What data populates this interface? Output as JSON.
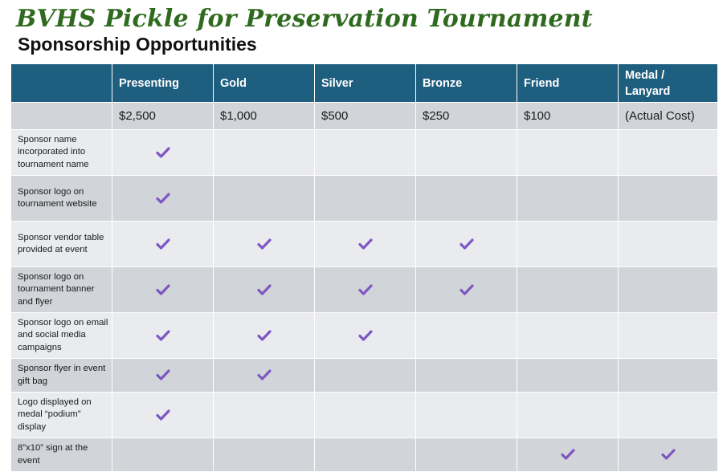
{
  "header": {
    "title": "BVHS Pickle for Preservation Tournament",
    "subtitle": "Sponsorship Opportunities"
  },
  "colors": {
    "title_green": "#2f6b1f",
    "header_blue": "#1e5e7e",
    "row_light": "#e9ebef",
    "row_dark": "#d1d4d9",
    "check_purple": "#7e57c2"
  },
  "table": {
    "tiers": [
      "Presenting",
      "Gold",
      "Silver",
      "Bronze",
      "Friend",
      "Medal / Lanyard"
    ],
    "prices": [
      "$2,500",
      "$1,000",
      "$500",
      "$250",
      "$100",
      "(Actual Cost)"
    ],
    "check_icon": "checkmark-icon",
    "rows": [
      {
        "label": "Sponsor name incorporated into tournament name",
        "checks": [
          true,
          false,
          false,
          false,
          false,
          false
        ]
      },
      {
        "label": "Sponsor logo on tournament website",
        "checks": [
          true,
          false,
          false,
          false,
          false,
          false
        ]
      },
      {
        "label": "Sponsor vendor table provided at event",
        "checks": [
          true,
          true,
          true,
          true,
          false,
          false
        ]
      },
      {
        "label": "Sponsor logo on tournament banner and flyer",
        "checks": [
          true,
          true,
          true,
          true,
          false,
          false
        ]
      },
      {
        "label": "Sponsor logo on email and social media campaigns",
        "checks": [
          true,
          true,
          true,
          false,
          false,
          false
        ]
      },
      {
        "label": "Sponsor flyer in event gift bag",
        "checks": [
          true,
          true,
          false,
          false,
          false,
          false
        ]
      },
      {
        "label": "Logo displayed on medal “podium” display",
        "checks": [
          true,
          false,
          false,
          false,
          false,
          false
        ]
      },
      {
        "label": "8”x10” sign at the event",
        "checks": [
          false,
          false,
          false,
          false,
          true,
          true
        ]
      }
    ]
  }
}
